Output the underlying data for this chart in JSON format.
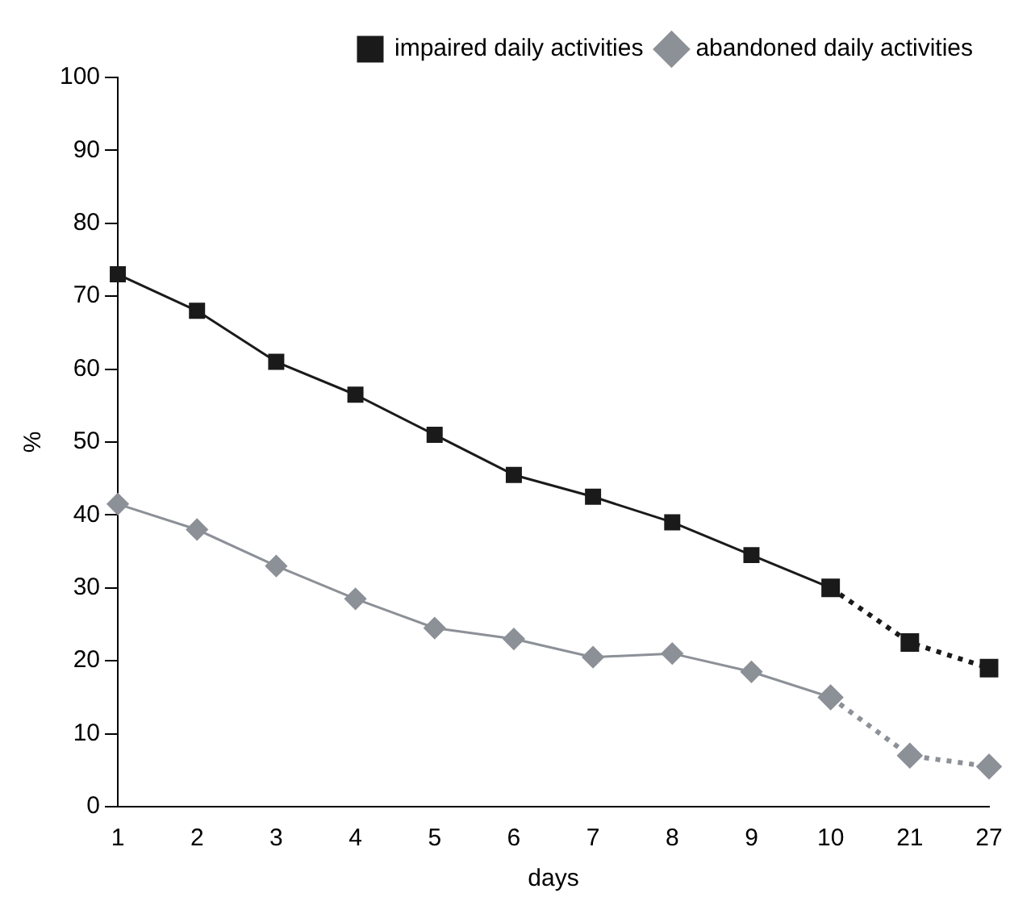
{
  "chart_data": {
    "type": "line",
    "xlabel": "days",
    "ylabel": "%",
    "categories": [
      "1",
      "2",
      "3",
      "4",
      "5",
      "6",
      "7",
      "8",
      "9",
      "10",
      "21",
      "27"
    ],
    "series": [
      {
        "name": "impaired daily activities",
        "color": "#1a1a1a",
        "marker": "square",
        "line_style": "solid",
        "values": [
          73,
          68,
          61,
          56.5,
          51,
          45.5,
          42.5,
          39,
          34.5,
          30,
          null,
          null
        ]
      },
      {
        "name": "abandoned daily activities",
        "color": "#8c9097",
        "marker": "diamond",
        "line_style": "solid",
        "values": [
          41.5,
          38,
          33,
          28.5,
          24.5,
          23,
          20.5,
          21,
          18.5,
          15,
          null,
          null
        ]
      },
      {
        "color": "#1a1a1a",
        "marker": "square",
        "line_style": "dotted",
        "values": [
          null,
          null,
          null,
          null,
          null,
          null,
          null,
          null,
          null,
          30,
          22.5,
          19
        ]
      },
      {
        "color": "#8c9097",
        "marker": "diamond",
        "line_style": "dotted",
        "values": [
          null,
          null,
          null,
          null,
          null,
          null,
          null,
          null,
          null,
          15,
          7,
          5.5
        ]
      }
    ],
    "ylim": [
      0,
      100
    ],
    "yticks": [
      0,
      10,
      20,
      30,
      40,
      50,
      60,
      70,
      80,
      90,
      100
    ],
    "grid": false,
    "legend": "top right"
  }
}
